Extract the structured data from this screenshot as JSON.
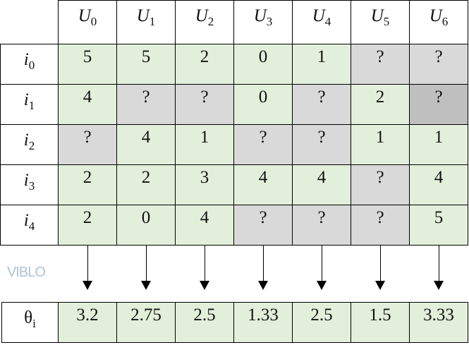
{
  "columns": [
    {
      "label": "U",
      "sub": "0"
    },
    {
      "label": "U",
      "sub": "1"
    },
    {
      "label": "U",
      "sub": "2"
    },
    {
      "label": "U",
      "sub": "3"
    },
    {
      "label": "U",
      "sub": "4"
    },
    {
      "label": "U",
      "sub": "5"
    },
    {
      "label": "U",
      "sub": "6"
    }
  ],
  "rows": [
    {
      "label": "i",
      "sub": "0",
      "values": [
        "5",
        "5",
        "2",
        "0",
        "1",
        "?",
        "?"
      ]
    },
    {
      "label": "i",
      "sub": "1",
      "values": [
        "4",
        "?",
        "?",
        "0",
        "?",
        "2",
        "?"
      ]
    },
    {
      "label": "i",
      "sub": "2",
      "values": [
        "?",
        "4",
        "1",
        "?",
        "?",
        "1",
        "1"
      ]
    },
    {
      "label": "i",
      "sub": "3",
      "values": [
        "2",
        "2",
        "3",
        "4",
        "4",
        "?",
        "4"
      ]
    },
    {
      "label": "i",
      "sub": "4",
      "values": [
        "2",
        "0",
        "4",
        "?",
        "?",
        "?",
        "5"
      ]
    }
  ],
  "highlighted_cell": {
    "row": 1,
    "col": 6
  },
  "theta": {
    "label": "θ",
    "sub": "i",
    "values": [
      "3.2",
      "2.75",
      "2.5",
      "1.33",
      "2.5",
      "1.5",
      "3.33"
    ]
  },
  "watermark": "VIBLO",
  "colors": {
    "known": "#e2efda",
    "unknown": "#d9d9d9",
    "highlight": "#bfbfbf"
  }
}
